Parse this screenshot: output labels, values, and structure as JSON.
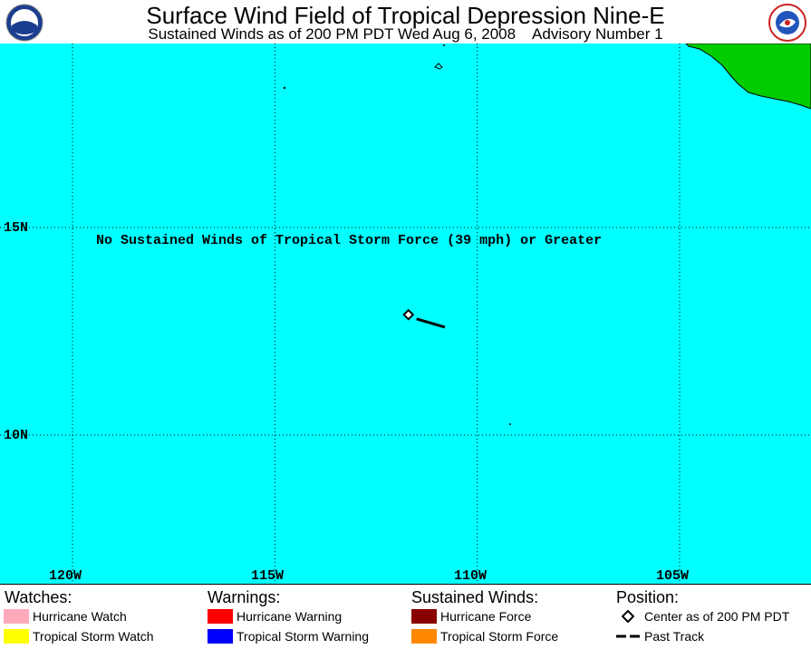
{
  "header": {
    "title": "Surface Wind Field of Tropical Depression Nine-E",
    "subtitle": "Sustained Winds as of 200 PM PDT Wed Aug 6, 2008    Advisory Number 1",
    "left_logo": "noaa-logo",
    "right_logo": "nws-logo"
  },
  "map": {
    "ocean_color": "#00ffff",
    "land_color": "#00cc00",
    "lat_labels": [
      "15N",
      "10N"
    ],
    "lon_labels": [
      "120W",
      "115W",
      "110W",
      "105W"
    ],
    "note": "No Sustained Winds of Tropical Storm Force (39 mph) or Greater",
    "storm_center": {
      "lon": -111.7,
      "lat": 12.9
    },
    "past_track": [
      {
        "lon": -111.5,
        "lat": 12.8
      },
      {
        "lon": -110.8,
        "lat": 12.6
      }
    ]
  },
  "legend": {
    "watches": {
      "heading": "Watches:",
      "items": [
        {
          "label": "Hurricane Watch",
          "color": "#ffaabb"
        },
        {
          "label": "Tropical Storm Watch",
          "color": "#ffff00"
        }
      ]
    },
    "warnings": {
      "heading": "Warnings:",
      "items": [
        {
          "label": "Hurricane Warning",
          "color": "#ff0000"
        },
        {
          "label": "Tropical Storm Warning",
          "color": "#0000ff"
        }
      ]
    },
    "winds": {
      "heading": "Sustained Winds:",
      "items": [
        {
          "label": "Hurricane Force",
          "color": "#880000"
        },
        {
          "label": "Tropical Storm Force",
          "color": "#ff8800"
        }
      ]
    },
    "position": {
      "heading": "Position:",
      "items": [
        {
          "label": "Center as of 200 PM PDT",
          "icon": "diamond-icon"
        },
        {
          "label": "Past Track",
          "icon": "dashed-line-icon"
        }
      ]
    }
  }
}
